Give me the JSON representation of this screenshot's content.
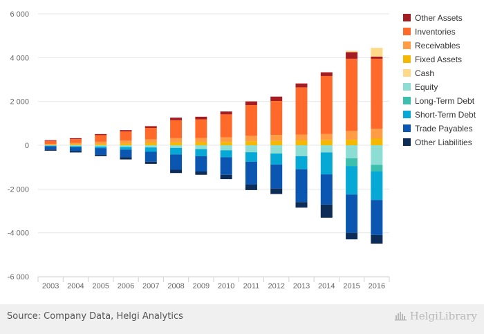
{
  "chart_data": {
    "type": "bar",
    "stacked": true,
    "categories": [
      "2003",
      "2004",
      "2005",
      "2006",
      "2007",
      "2008",
      "2009",
      "2010",
      "2011",
      "2012",
      "2013",
      "2014",
      "2015",
      "2016"
    ],
    "assets": [
      {
        "name": "Fixed Assets",
        "color": "#f5b800",
        "values": [
          20,
          40,
          60,
          80,
          110,
          130,
          140,
          150,
          180,
          200,
          220,
          230,
          250,
          300
        ]
      },
      {
        "name": "Receivables",
        "color": "#ff9c44",
        "values": [
          40,
          70,
          100,
          130,
          160,
          190,
          190,
          210,
          250,
          270,
          270,
          280,
          400,
          450
        ]
      },
      {
        "name": "Inventories",
        "color": "#ff6a2b",
        "values": [
          140,
          170,
          300,
          420,
          520,
          820,
          850,
          1050,
          1400,
          1550,
          2150,
          2650,
          3300,
          3200
        ]
      },
      {
        "name": "Other Assets",
        "color": "#a31d22",
        "values": [
          30,
          40,
          50,
          60,
          80,
          120,
          120,
          130,
          170,
          200,
          180,
          170,
          300,
          100
        ]
      },
      {
        "name": "Cash",
        "color": "#ffd98a",
        "values": [
          0,
          0,
          0,
          0,
          0,
          0,
          0,
          0,
          0,
          0,
          0,
          0,
          60,
          400
        ]
      }
    ],
    "liabilities": [
      {
        "name": "Equity",
        "color": "#8cddd3",
        "values": [
          -20,
          -40,
          -60,
          -80,
          -100,
          -120,
          -180,
          -230,
          -320,
          -380,
          -500,
          -330,
          -600,
          -900
        ]
      },
      {
        "name": "Long-Term Debt",
        "color": "#3dbfae",
        "values": [
          0,
          0,
          0,
          0,
          0,
          0,
          0,
          0,
          0,
          0,
          0,
          0,
          -350,
          -300
        ]
      },
      {
        "name": "Short-Term Debt",
        "color": "#06a8d6",
        "values": [
          -30,
          -50,
          -70,
          -120,
          -200,
          -300,
          -320,
          -320,
          -430,
          -500,
          -600,
          -1000,
          -1300,
          -1300
        ]
      },
      {
        "name": "Trade Payables",
        "color": "#0a56b1",
        "values": [
          -150,
          -180,
          -300,
          -350,
          -450,
          -700,
          -700,
          -800,
          -1050,
          -1100,
          -1500,
          -1380,
          -1750,
          -1600
        ]
      },
      {
        "name": "Other Liabilities",
        "color": "#0d2d57",
        "values": [
          -50,
          -60,
          -70,
          -100,
          -100,
          -150,
          -150,
          -200,
          -250,
          -250,
          -250,
          -600,
          -300,
          -400
        ]
      }
    ],
    "legend": [
      "Other Assets",
      "Inventories",
      "Receivables",
      "Fixed Assets",
      "Cash",
      "Equity",
      "Long-Term Debt",
      "Short-Term Debt",
      "Trade Payables",
      "Other Liabilities"
    ],
    "legend_position": "right",
    "y_ticks": [
      6000,
      4000,
      2000,
      0,
      -2000,
      -4000,
      -6000
    ],
    "y_tick_labels": [
      "6 000",
      "4 000",
      "2 000",
      "0",
      "-2 000",
      "-4 000",
      "-6 000"
    ],
    "ylim": [
      -6000,
      6000
    ],
    "grid": true,
    "title": "",
    "xlabel": "",
    "ylabel": ""
  },
  "footer": {
    "source": "Source: Company Data, Helgi Analytics",
    "brand": "HelgiLibrary",
    "brand_icon": "helgi-logo-icon"
  }
}
